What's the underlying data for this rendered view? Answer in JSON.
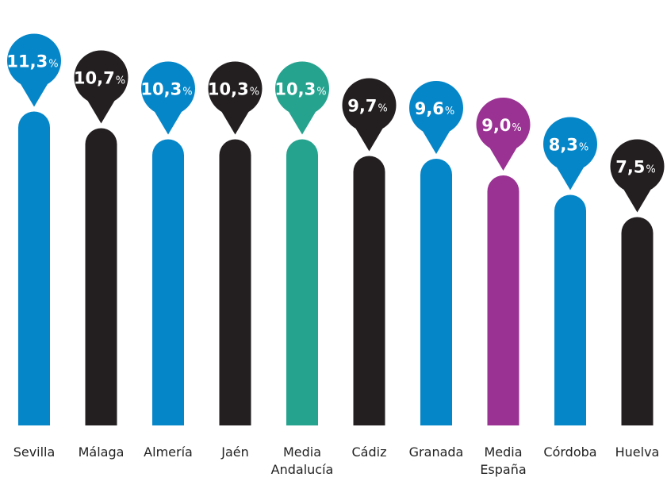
{
  "chart_data": {
    "type": "bar",
    "title": "",
    "xlabel": "",
    "ylabel": "",
    "categories": [
      [
        "Sevilla"
      ],
      [
        "Málaga"
      ],
      [
        "Almería"
      ],
      [
        "Jaén"
      ],
      [
        "Media",
        "Andalucía"
      ],
      [
        "Cádiz"
      ],
      [
        "Granada"
      ],
      [
        "Media",
        "España"
      ],
      [
        "Córdoba"
      ],
      [
        "Huelva"
      ]
    ],
    "values": [
      11.3,
      10.7,
      10.3,
      10.3,
      10.3,
      9.7,
      9.6,
      9.0,
      8.3,
      7.5
    ],
    "value_labels": [
      "11,3",
      "10,7",
      "10,3",
      "10,3",
      "10,3",
      "9,7",
      "9,6",
      "9,0",
      "8,3",
      "7,5"
    ],
    "unit": "%",
    "colors": [
      "#0586c9",
      "#231f20",
      "#0586c9",
      "#231f20",
      "#26a38f",
      "#231f20",
      "#0586c9",
      "#9a3293",
      "#0586c9",
      "#231f20"
    ],
    "grid": false,
    "legend": "none"
  }
}
